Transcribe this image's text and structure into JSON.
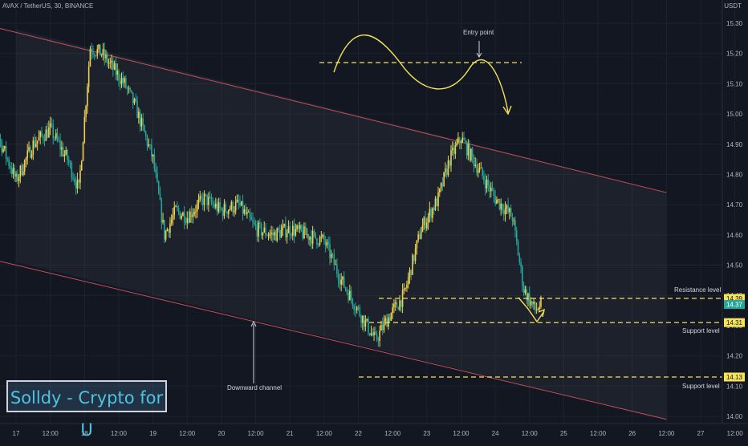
{
  "header": {
    "symbol_line": "AVAX / TetherUS, 30, BINANCE",
    "currency": "USDT"
  },
  "watermark": "Solldy - Crypto for U",
  "annotations": {
    "entry_point": "Entry point",
    "resistance": "Resistance level",
    "support_upper": "Support level",
    "support_lower": "Support level",
    "downward_channel": "Downward channel"
  },
  "price_tags": [
    {
      "label": "14.39",
      "bg": "#f5e35a"
    },
    {
      "label": "14.37",
      "bg": "#26a69a"
    },
    {
      "label": "14.31",
      "bg": "#f5e35a"
    },
    {
      "label": "14.13",
      "bg": "#f5e35a"
    }
  ],
  "colors": {
    "up": "#26a69a",
    "down": "#ef5350",
    "candle_up": "#f0d050",
    "candle_down": "#26a69a",
    "level": "#f5e35a",
    "channel": "#c0505a"
  },
  "chart_data": {
    "type": "candlestick",
    "y_axis": {
      "ticks": [
        "15.30",
        "15.20",
        "15.10",
        "15.00",
        "14.90",
        "14.80",
        "14.70",
        "14.60",
        "14.50",
        "14.40",
        "14.30",
        "14.20",
        "14.10",
        "14.00"
      ],
      "range": [
        13.97,
        15.31
      ]
    },
    "x_axis": {
      "ticks": [
        "17",
        "12:00",
        "18",
        "12:00",
        "19",
        "12:00",
        "20",
        "12:00",
        "21",
        "12:00",
        "22",
        "12:00",
        "23",
        "12:00",
        "24",
        "12:00",
        "25",
        "12:00",
        "26",
        "12:00",
        "27",
        "12:00"
      ]
    },
    "levels": [
      {
        "name": "Resistance level",
        "value": 14.39
      },
      {
        "name": "Support level",
        "value": 14.31
      },
      {
        "name": "Support level",
        "value": 14.13
      },
      {
        "name": "Entry point",
        "value": 15.17
      }
    ],
    "channel": {
      "upper": [
        [
          "17 00:00",
          15.28
        ],
        [
          "26 12:00",
          14.74
        ]
      ],
      "lower": [
        [
          "17 00:00",
          14.51
        ],
        [
          "26 12:00",
          13.99
        ]
      ]
    },
    "price_path": [
      [
        "16 12:00",
        14.88
      ],
      [
        "16 18:00",
        14.92
      ],
      [
        "17 00:00",
        14.78
      ],
      [
        "17 06:00",
        14.9
      ],
      [
        "17 12:00",
        14.95
      ],
      [
        "17 18:00",
        14.85
      ],
      [
        "17 22:00",
        14.75
      ],
      [
        "18 02:00",
        15.22
      ],
      [
        "18 06:00",
        15.2
      ],
      [
        "18 10:00",
        15.15
      ],
      [
        "18 14:00",
        15.1
      ],
      [
        "18 18:00",
        15.02
      ],
      [
        "19 00:00",
        14.85
      ],
      [
        "19 04:00",
        14.6
      ],
      [
        "19 08:00",
        14.68
      ],
      [
        "19 12:00",
        14.66
      ],
      [
        "19 18:00",
        14.72
      ],
      [
        "20 00:00",
        14.68
      ],
      [
        "20 06:00",
        14.7
      ],
      [
        "20 12:00",
        14.62
      ],
      [
        "20 18:00",
        14.6
      ],
      [
        "21 00:00",
        14.62
      ],
      [
        "21 06:00",
        14.6
      ],
      [
        "21 12:00",
        14.58
      ],
      [
        "21 18:00",
        14.45
      ],
      [
        "22 00:00",
        14.35
      ],
      [
        "22 06:00",
        14.25
      ],
      [
        "22 10:00",
        14.32
      ],
      [
        "22 16:00",
        14.4
      ],
      [
        "22 22:00",
        14.62
      ],
      [
        "23 04:00",
        14.72
      ],
      [
        "23 08:00",
        14.85
      ],
      [
        "23 12:00",
        14.92
      ],
      [
        "23 18:00",
        14.82
      ],
      [
        "24 00:00",
        14.72
      ],
      [
        "24 06:00",
        14.66
      ],
      [
        "24 10:00",
        14.42
      ],
      [
        "24 14:00",
        14.35
      ],
      [
        "24 16:00",
        14.37
      ]
    ]
  }
}
